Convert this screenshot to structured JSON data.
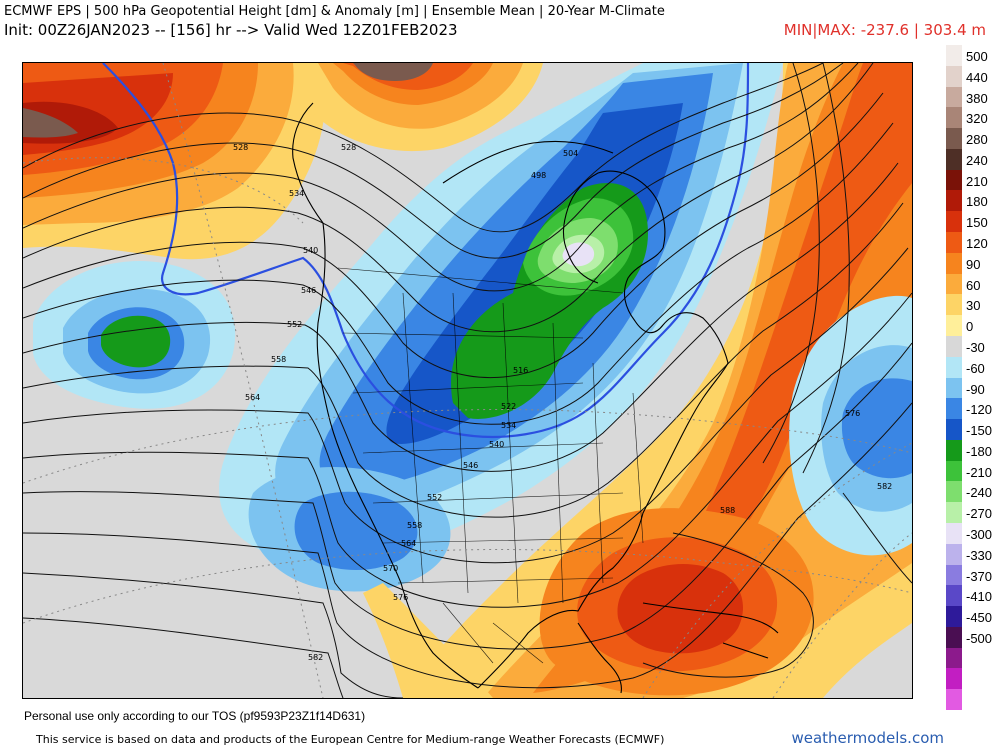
{
  "header": {
    "title_line1": "ECMWF EPS | 500 hPa Geopotential Height [dm] & Anomaly [m] | Ensemble Mean | 20-Year M-Climate",
    "title_line2": "Init: 00Z26JAN2023 -- [156] hr --> Valid Wed 12Z01FEB2023",
    "minmax": "MIN|MAX: -237.6 | 303.4 m"
  },
  "colorbar": {
    "entries": [
      {
        "label": "500",
        "color": "#f2ece9"
      },
      {
        "label": "440",
        "color": "#e2d2cb"
      },
      {
        "label": "380",
        "color": "#c8aa9e"
      },
      {
        "label": "320",
        "color": "#a98577"
      },
      {
        "label": "280",
        "color": "#7a5a4e"
      },
      {
        "label": "240",
        "color": "#4e2f26"
      },
      {
        "label": "210",
        "color": "#7a1208"
      },
      {
        "label": "180",
        "color": "#b01a08"
      },
      {
        "label": "150",
        "color": "#d8310c"
      },
      {
        "label": "120",
        "color": "#ee5a14"
      },
      {
        "label": "90",
        "color": "#f6841e"
      },
      {
        "label": "60",
        "color": "#fbab3c"
      },
      {
        "label": "30",
        "color": "#fdd466"
      },
      {
        "label": "0",
        "color": "#ffef9a"
      },
      {
        "label": "-30",
        "color": "#d8d8d8"
      },
      {
        "label": "-60",
        "color": "#b2e6f6"
      },
      {
        "label": "-90",
        "color": "#7cc3f0"
      },
      {
        "label": "-120",
        "color": "#3a86e4"
      },
      {
        "label": "-150",
        "color": "#1656c8"
      },
      {
        "label": "-180",
        "color": "#159a1a"
      },
      {
        "label": "-210",
        "color": "#3dc23a"
      },
      {
        "label": "-240",
        "color": "#7ede6e"
      },
      {
        "label": "-270",
        "color": "#b8f0a8"
      },
      {
        "label": "-300",
        "color": "#e8e2f6"
      },
      {
        "label": "-330",
        "color": "#bcb2ec"
      },
      {
        "label": "-370",
        "color": "#8a7ce0"
      },
      {
        "label": "-410",
        "color": "#5a48c8"
      },
      {
        "label": "-450",
        "color": "#2e1a9a"
      },
      {
        "label": "-500",
        "color": "#4a0e52"
      },
      {
        "label": "",
        "color": "#8c1a8c"
      },
      {
        "label": "",
        "color": "#c21ec2"
      },
      {
        "label": "",
        "color": "#e25ae2"
      }
    ]
  },
  "map": {
    "contour_labels": [
      {
        "text": "528"
      },
      {
        "text": "528"
      },
      {
        "text": "534"
      },
      {
        "text": "540"
      },
      {
        "text": "546"
      },
      {
        "text": "552"
      },
      {
        "text": "558"
      },
      {
        "text": "564"
      },
      {
        "text": "498"
      },
      {
        "text": "504"
      },
      {
        "text": "516"
      },
      {
        "text": "522"
      },
      {
        "text": "534"
      },
      {
        "text": "540"
      },
      {
        "text": "546"
      },
      {
        "text": "552"
      },
      {
        "text": "558"
      },
      {
        "text": "564"
      },
      {
        "text": "570"
      },
      {
        "text": "576"
      },
      {
        "text": "582"
      },
      {
        "text": "576"
      },
      {
        "text": "582"
      },
      {
        "text": "588"
      }
    ]
  },
  "footer": {
    "tos": "Personal use only according to our TOS (pf9593P23Z1f14D631)",
    "service": "This service is based on data and products of the European Centre for Medium-range Weather Forecasts (ECMWF)",
    "brand": "weathermodels.com"
  }
}
